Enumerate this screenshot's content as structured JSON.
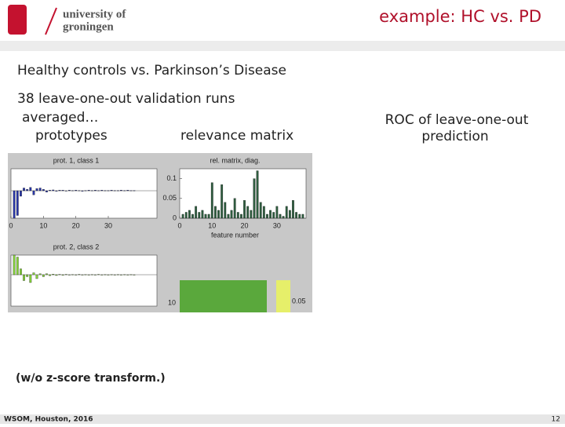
{
  "header": {
    "title": "example: HC vs. PD",
    "logo": [
      "university of",
      "groningen"
    ]
  },
  "body": {
    "subtitle": "Healthy controls vs. Parkinson’s Disease",
    "runs": "38 leave-one-out validation runs",
    "averaged": "averaged…",
    "left_caption": "prototypes",
    "mid_caption": "relevance matrix",
    "roc_caption": [
      "ROC of leave-one-out",
      "prediction"
    ],
    "note": "(w/o z-score transform.)"
  },
  "figure": {
    "panels": [
      {
        "title": "prot. 1, class 1",
        "color": "#2a37a8",
        "xlim": [
          0,
          45
        ],
        "ylim": [
          -1,
          0.8
        ],
        "xticks": [
          0,
          10,
          20,
          30
        ],
        "values": [
          -1,
          -0.9,
          -0.2,
          0.1,
          0.05,
          0.12,
          -0.15,
          0.08,
          0.1,
          0.05,
          -0.05,
          0.02,
          0.03,
          -0.02,
          0.02,
          0.02,
          -0.01,
          0.02,
          0.01,
          0.02,
          0.01,
          -0.02,
          0.01,
          0.02,
          0.01,
          0.02,
          0.01,
          0.02,
          0.01,
          0.01,
          0.02,
          0.01,
          0.01,
          0.02,
          0.01,
          0.02,
          0.01,
          0.01
        ]
      },
      {
        "title": "rel. matrix, diag.",
        "xlabel": "feature number",
        "color": "#2f5e40",
        "xlim": [
          0,
          39
        ],
        "ylim": [
          0,
          0.125
        ],
        "xticks": [
          0,
          10,
          20,
          30
        ],
        "yticks": [
          0,
          0.05,
          0.1
        ],
        "values": [
          0.01,
          0.015,
          0.02,
          0.01,
          0.03,
          0.015,
          0.02,
          0.01,
          0.01,
          0.09,
          0.03,
          0.02,
          0.085,
          0.04,
          0.01,
          0.02,
          0.05,
          0.015,
          0.01,
          0.045,
          0.03,
          0.02,
          0.1,
          0.12,
          0.04,
          0.03,
          0.01,
          0.02,
          0.015,
          0.03,
          0.01,
          0.005,
          0.03,
          0.02,
          0.045,
          0.015,
          0.01,
          0.01
        ]
      },
      {
        "title": "prot. 2, class 2",
        "color": "#86d23c",
        "xlim": [
          0,
          45
        ],
        "ylim": [
          -1.6,
          1
        ],
        "values": [
          1,
          0.9,
          0.3,
          -0.3,
          -0.1,
          -0.4,
          0.1,
          -0.2,
          0.05,
          -0.1,
          0.05,
          -0.05,
          0.03,
          -0.04,
          0.02,
          -0.03,
          0.02,
          -0.02,
          0.01,
          -0.02,
          0.02,
          -0.01,
          0.01,
          -0.02,
          0.01,
          -0.01,
          0.02,
          -0.01,
          0.01,
          -0.02,
          0.01,
          -0.01,
          0.01,
          -0.01,
          0.01,
          -0.01,
          0.01,
          -0.01
        ]
      }
    ],
    "matrix": {
      "ytick": "10",
      "colorbar_tick": "0.05"
    }
  },
  "footer": {
    "left": "WSOM, Houston, 2016",
    "page": "12"
  }
}
